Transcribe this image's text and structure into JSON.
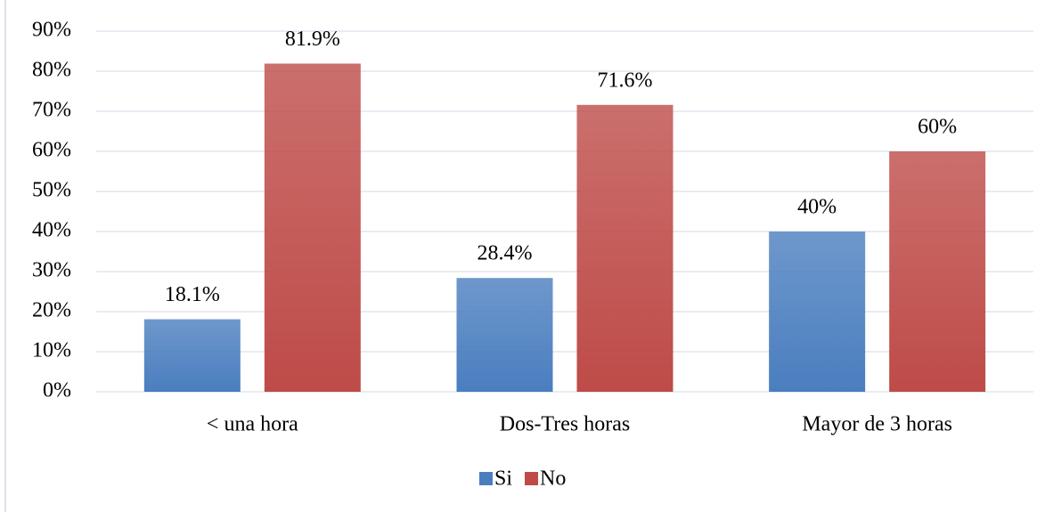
{
  "chart_data": {
    "type": "bar",
    "categories": [
      "< una hora",
      "Dos-Tres horas",
      "Mayor de 3 horas"
    ],
    "series": [
      {
        "name": "Si",
        "color": "#4a7ebf",
        "values": [
          18.1,
          28.4,
          40
        ],
        "value_labels": [
          "18.1%",
          "28.4%",
          "40%"
        ]
      },
      {
        "name": "No",
        "color": "#be4b48",
        "values": [
          81.9,
          71.6,
          60
        ],
        "value_labels": [
          "81.9%",
          "71.6%",
          "60%"
        ]
      }
    ],
    "ylim": [
      0,
      90
    ],
    "yticks": [
      {
        "value": 0,
        "label": "0%"
      },
      {
        "value": 10,
        "label": "10%"
      },
      {
        "value": 20,
        "label": "20%"
      },
      {
        "value": 30,
        "label": "30%"
      },
      {
        "value": 40,
        "label": "40%"
      },
      {
        "value": 50,
        "label": "50%"
      },
      {
        "value": 60,
        "label": "60%"
      },
      {
        "value": 70,
        "label": "70%"
      },
      {
        "value": 80,
        "label": "80%"
      },
      {
        "value": 90,
        "label": "90%"
      }
    ],
    "grid": true,
    "legend": "bottom"
  }
}
